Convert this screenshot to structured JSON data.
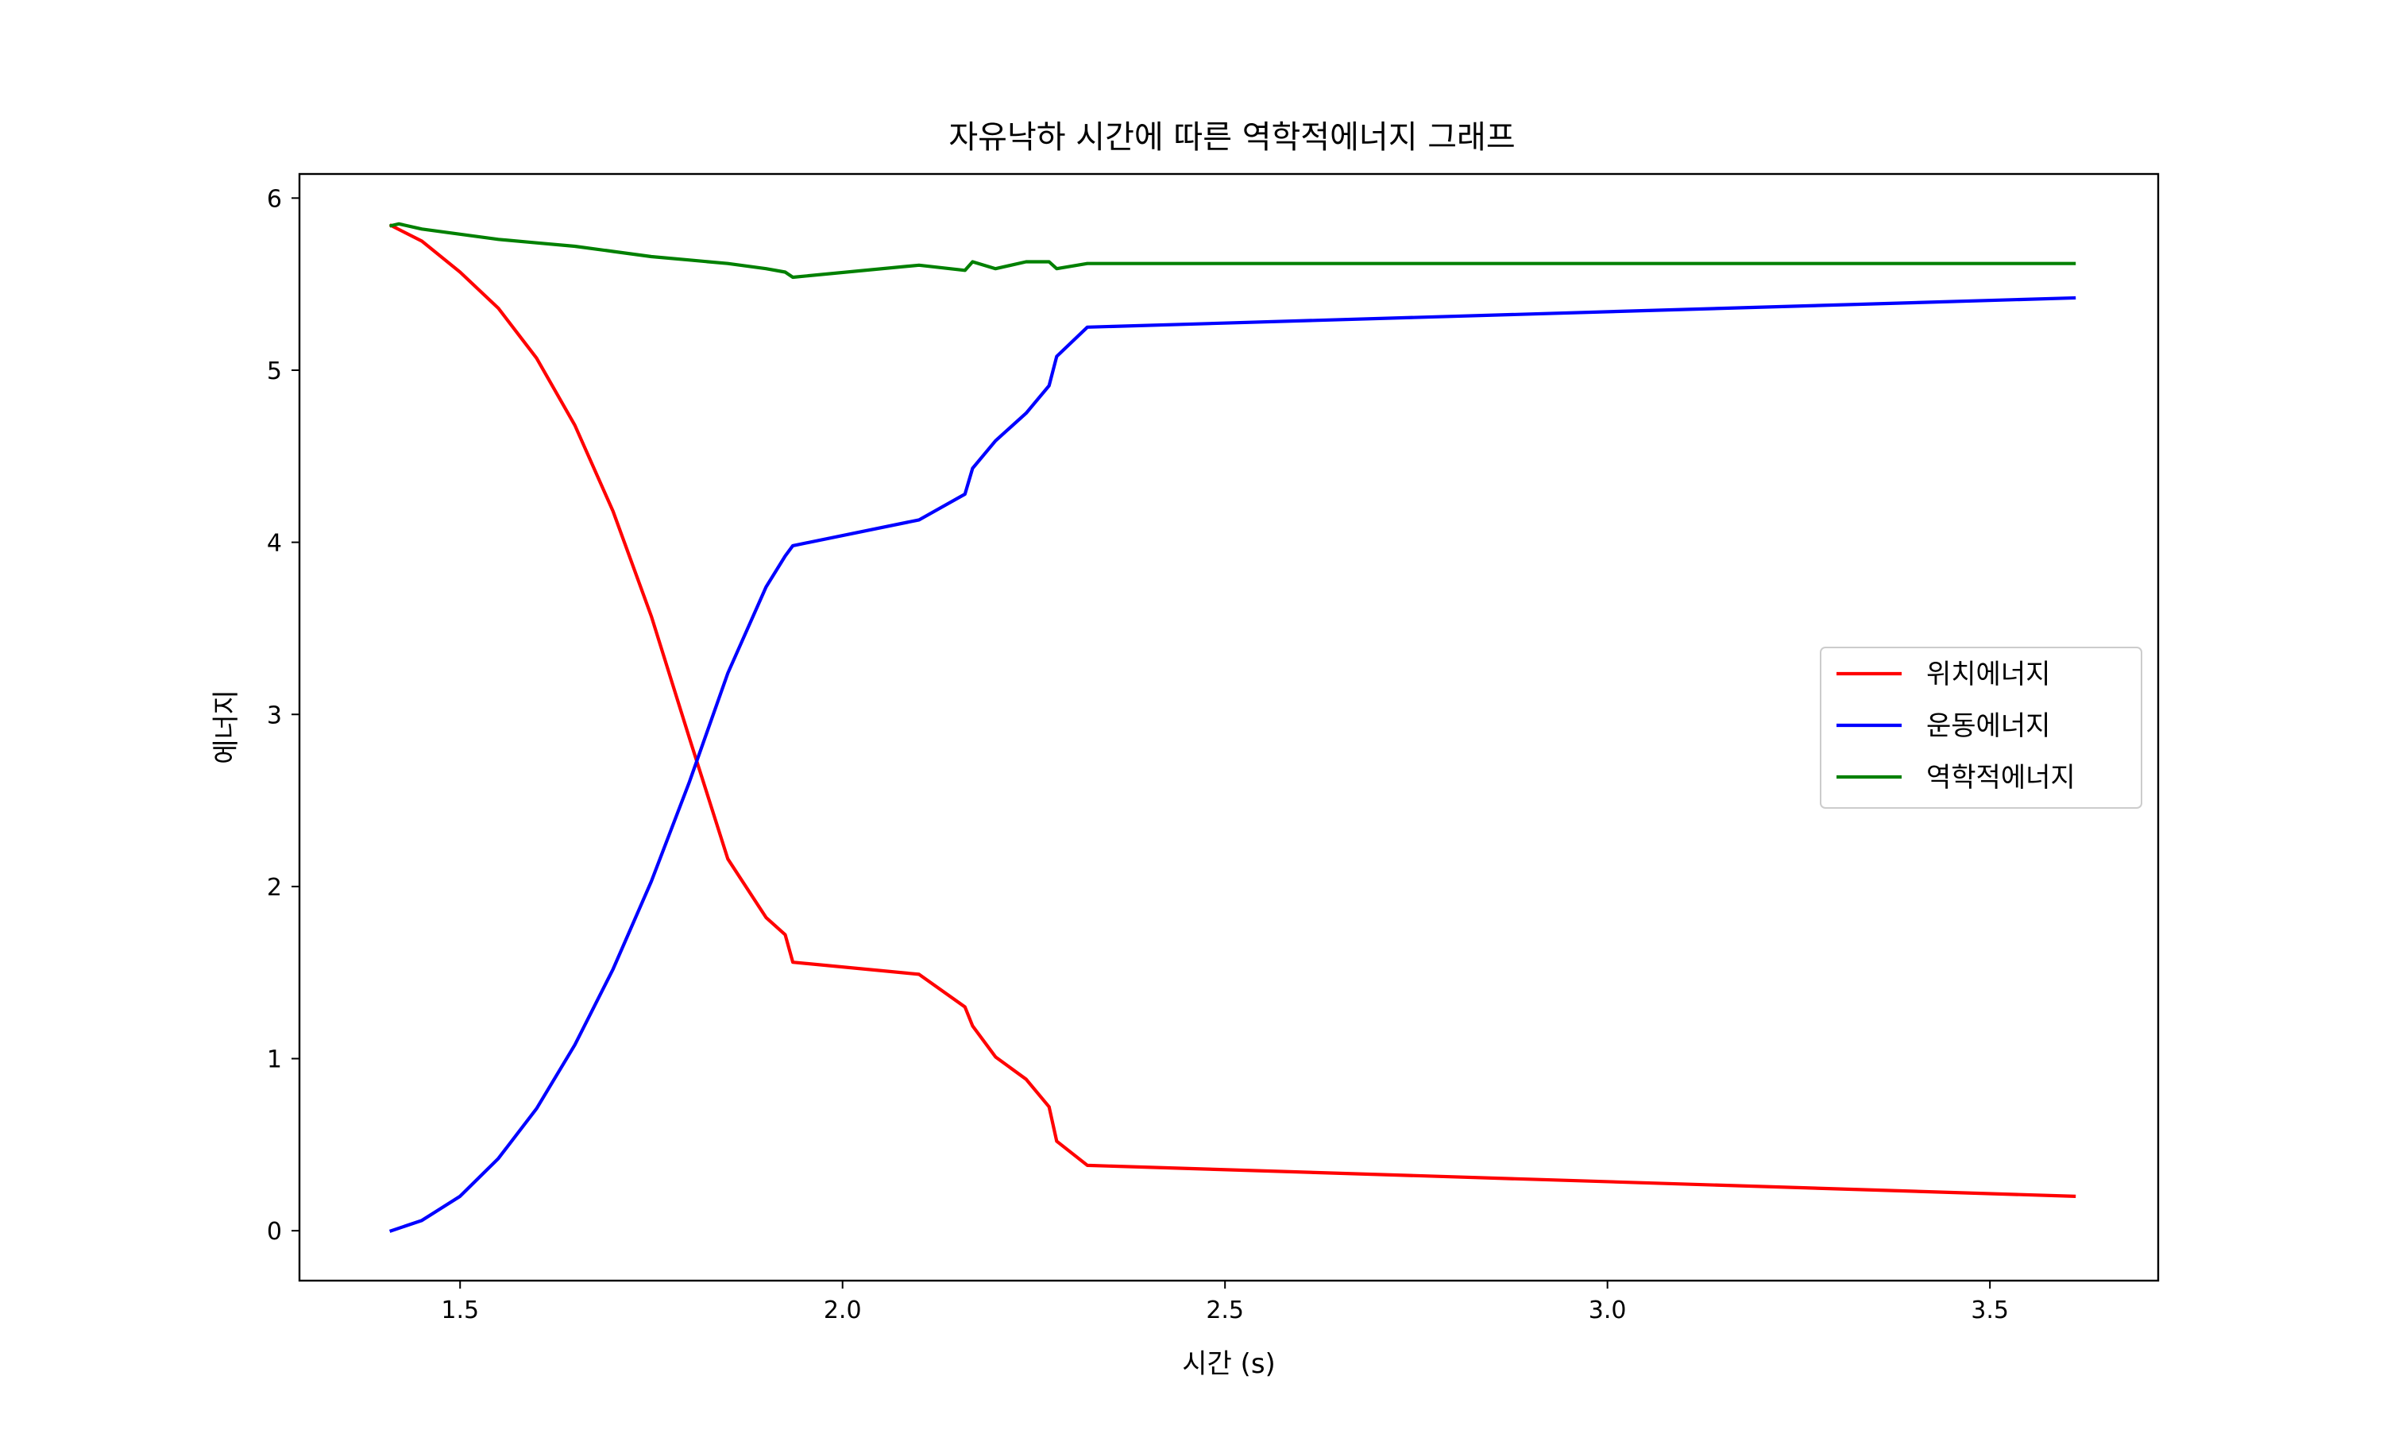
{
  "chart_data": {
    "type": "line",
    "title": "자유낙하 시간에 따른 역학적에너지 그래프",
    "xlabel": "시간 (s)",
    "ylabel": "에너지",
    "xlim": [
      1.29,
      3.72
    ],
    "ylim": [
      -0.29,
      6.14
    ],
    "xticks": [
      1.5,
      2.0,
      2.5,
      3.0,
      3.5
    ],
    "xtick_labels": [
      "1.5",
      "2.0",
      "2.5",
      "3.0",
      "3.5"
    ],
    "yticks": [
      0,
      1,
      2,
      3,
      4,
      5,
      6
    ],
    "ytick_labels": [
      "0",
      "1",
      "2",
      "3",
      "4",
      "5",
      "6"
    ],
    "grid": false,
    "legend_position": "center-right",
    "series": [
      {
        "name": "위치에너지",
        "color": "#ff0000",
        "x": [
          1.41,
          1.45,
          1.5,
          1.55,
          1.6,
          1.65,
          1.7,
          1.75,
          1.8,
          1.85,
          1.9,
          1.925,
          1.935,
          2.1,
          2.16,
          2.17,
          2.2,
          2.24,
          2.27,
          2.28,
          2.32,
          3.61
        ],
        "y": [
          5.84,
          5.75,
          5.57,
          5.36,
          5.07,
          4.68,
          4.18,
          3.57,
          2.86,
          2.16,
          1.82,
          1.72,
          1.56,
          1.49,
          1.3,
          1.19,
          1.01,
          0.88,
          0.72,
          0.52,
          0.38,
          0.2
        ]
      },
      {
        "name": "운동에너지",
        "color": "#0000ff",
        "x": [
          1.41,
          1.45,
          1.5,
          1.55,
          1.6,
          1.65,
          1.7,
          1.75,
          1.8,
          1.85,
          1.9,
          1.925,
          1.935,
          2.1,
          2.16,
          2.17,
          2.2,
          2.24,
          2.27,
          2.28,
          2.32,
          3.61
        ],
        "y": [
          0.0,
          0.06,
          0.2,
          0.42,
          0.71,
          1.08,
          1.52,
          2.03,
          2.61,
          3.24,
          3.74,
          3.92,
          3.98,
          4.13,
          4.28,
          4.43,
          4.59,
          4.75,
          4.91,
          5.08,
          5.25,
          5.42
        ]
      },
      {
        "name": "역학적에너지",
        "color": "#008000",
        "x": [
          1.41,
          1.42,
          1.45,
          1.5,
          1.55,
          1.6,
          1.65,
          1.7,
          1.75,
          1.8,
          1.85,
          1.9,
          1.925,
          1.935,
          2.1,
          2.16,
          2.17,
          2.2,
          2.24,
          2.27,
          2.28,
          2.32,
          3.61
        ],
        "y": [
          5.84,
          5.85,
          5.82,
          5.79,
          5.76,
          5.74,
          5.72,
          5.69,
          5.66,
          5.64,
          5.62,
          5.59,
          5.57,
          5.54,
          5.61,
          5.58,
          5.63,
          5.59,
          5.63,
          5.63,
          5.59,
          5.62,
          5.62
        ]
      }
    ]
  }
}
